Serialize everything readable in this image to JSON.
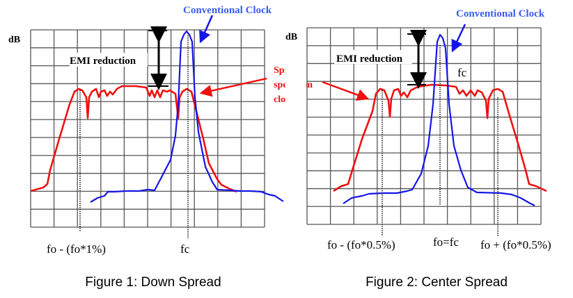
{
  "figures": [
    {
      "caption": "Figure 1: Down Spread",
      "y_label": "dB",
      "conventional_label": "Conventional Clock",
      "spread_label": [
        "Spread",
        "spectrum",
        "clock"
      ],
      "emi_label": "EMI reduction",
      "x_labels": [
        "fo - (fo*1%)",
        "fc"
      ]
    },
    {
      "caption": "Figure 2: Center Spread",
      "y_label": "dB",
      "conventional_label": "Conventional Clock",
      "emi_label": "EMI reduction",
      "fc_label": "fc",
      "x_labels": [
        "fo - (fo*0.5%)",
        "fo=fc",
        "fo + (fo*0.5%)"
      ]
    }
  ],
  "colors": {
    "conventional": "#1515e8",
    "spread": "#f01010"
  }
}
